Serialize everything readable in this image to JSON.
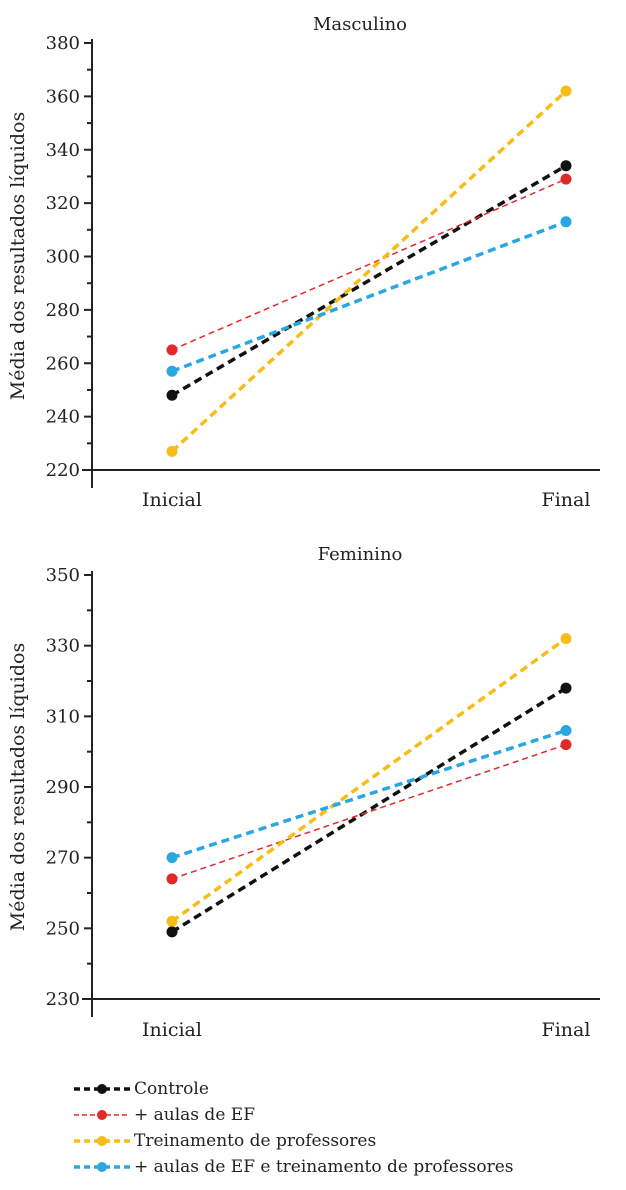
{
  "chart_data": [
    {
      "type": "line",
      "title": "Masculino",
      "ylabel": "Média dos resultados líquidos",
      "categories": [
        "Inicial",
        "Final"
      ],
      "ylim": [
        220,
        380
      ],
      "yticks": [
        220,
        240,
        260,
        280,
        300,
        320,
        340,
        360,
        380
      ],
      "series": [
        {
          "name": "Controle",
          "values": [
            248,
            334
          ]
        },
        {
          "name": "+ aulas de EF",
          "values": [
            265,
            329
          ]
        },
        {
          "name": "Treinamento de professores",
          "values": [
            227,
            362
          ]
        },
        {
          "name": "+ aulas de EF e treinamento de professores",
          "values": [
            257,
            313
          ]
        }
      ]
    },
    {
      "type": "line",
      "title": "Feminino",
      "ylabel": "Média dos resultados líquidos",
      "categories": [
        "Inicial",
        "Final"
      ],
      "ylim": [
        230,
        350
      ],
      "yticks": [
        230,
        250,
        270,
        290,
        310,
        330,
        350
      ],
      "series": [
        {
          "name": "Controle",
          "values": [
            249,
            318
          ]
        },
        {
          "name": "+ aulas de EF",
          "values": [
            264,
            302
          ]
        },
        {
          "name": "Treinamento de professores",
          "values": [
            252,
            332
          ]
        },
        {
          "name": "+ aulas de EF e treinamento de professores",
          "values": [
            270,
            306
          ]
        }
      ]
    }
  ],
  "legend": {
    "items": [
      {
        "label": "Controle",
        "color": "#111111",
        "style": "thick-dash"
      },
      {
        "label": "+ aulas de EF",
        "color": "#e02a2a",
        "style": "thin-dash"
      },
      {
        "label": "Treinamento de professores",
        "color": "#f7bd16",
        "style": "thick-dash"
      },
      {
        "label": "+ aulas de EF e treinamento de professores",
        "color": "#2aa6e0",
        "style": "thick-dash"
      }
    ]
  }
}
